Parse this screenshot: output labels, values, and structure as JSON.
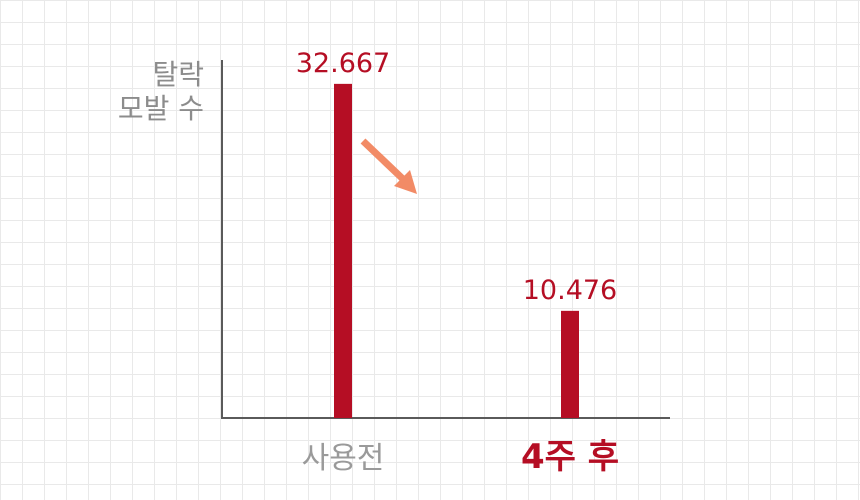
{
  "chart_data": {
    "type": "bar",
    "ylabel": [
      "탈락",
      "모발 수"
    ],
    "categories": [
      "사용전",
      "4주 후"
    ],
    "values": [
      32.667,
      10.476
    ],
    "value_labels": [
      "32.667",
      "10.476"
    ],
    "highlight_category_index": 1,
    "ylim": [
      0,
      35
    ],
    "grid": true,
    "annotations": [
      {
        "type": "arrow",
        "direction": "down-right",
        "meaning": "decrease"
      }
    ]
  },
  "colors": {
    "bar": "#b50e24",
    "value_label": "#b50e24",
    "highlight_label": "#b50e24",
    "axis": "#5a5a5a",
    "muted_text": "#9a9a9a",
    "arrow": "#f28b66",
    "grid": "#e9e9e9"
  }
}
